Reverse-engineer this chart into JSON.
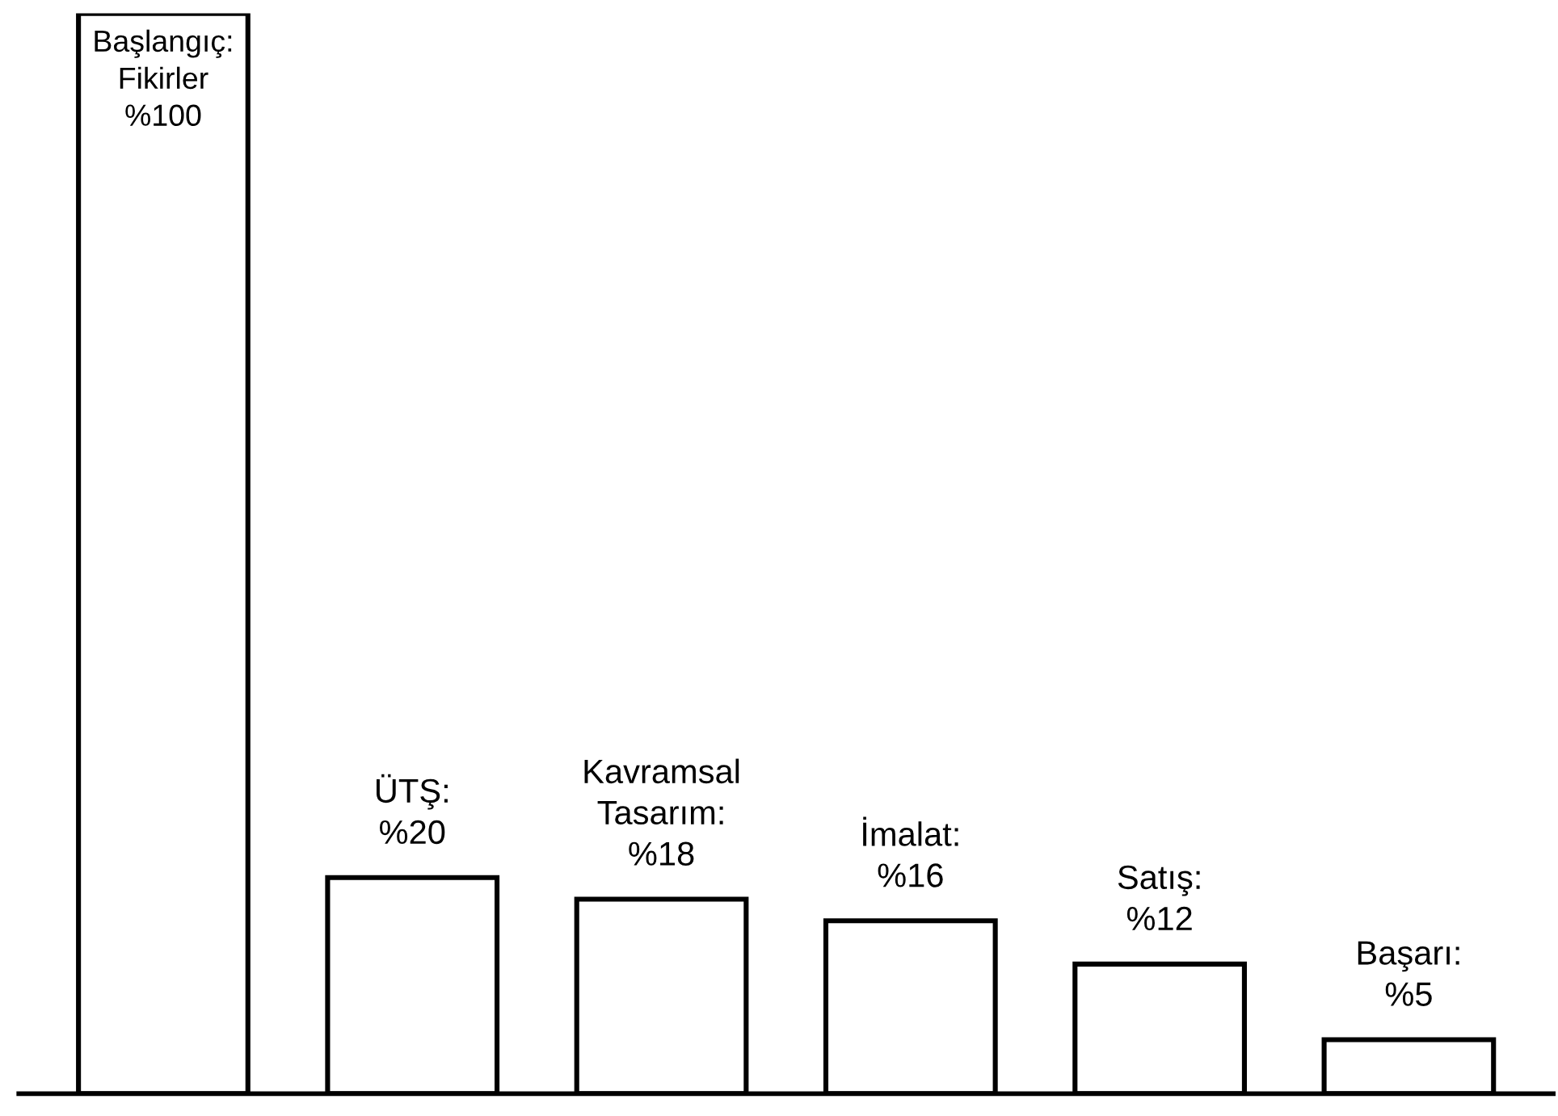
{
  "chart_data": {
    "type": "bar",
    "categories": [
      null,
      null,
      null,
      null,
      null,
      null
    ],
    "values": [
      100,
      20,
      18,
      16,
      12,
      5
    ],
    "value_labels": [
      "Başlangıç:\nFikirler\n%100",
      "ÜTŞ:\n%20",
      "Kavramsal\nTasarım:\n%18",
      "İmalat:\n%16",
      "Satış:\n%12",
      "Başarı:\n%5"
    ],
    "color": "#ffffff",
    "grid": false,
    "legend": false
  }
}
